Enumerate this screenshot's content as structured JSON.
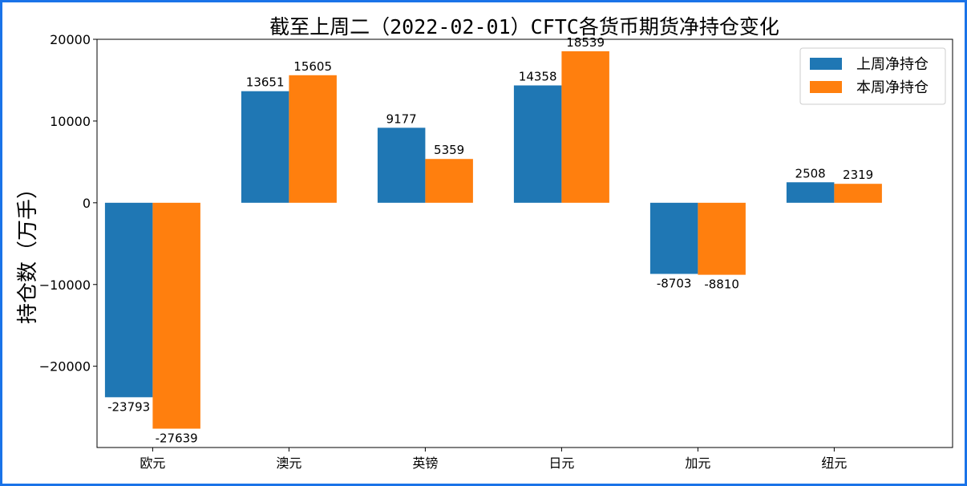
{
  "chart_data": {
    "type": "bar",
    "title": "截至上周二（2022-02-01）CFTC各货币期货净持仓变化",
    "xlabel": "",
    "ylabel": "持仓数（万手）",
    "categories": [
      "欧元",
      "澳元",
      "英镑",
      "日元",
      "加元",
      "纽元"
    ],
    "series": [
      {
        "name": "上周净持仓",
        "values": [
          -23793,
          13651,
          9177,
          14358,
          -8703,
          2508
        ],
        "color": "#1f77b4"
      },
      {
        "name": "本周净持仓",
        "values": [
          -27639,
          15605,
          5359,
          18539,
          -8810,
          2319
        ],
        "color": "#ff7f0e"
      }
    ],
    "ylim": [
      -29942,
      20000
    ],
    "yticks": [
      20000,
      10000,
      0,
      -10000,
      -20000
    ],
    "ytick_labels": [
      "20000",
      "10000",
      "0",
      "−10000",
      "−20000"
    ],
    "grid": false,
    "legend": "top-right"
  }
}
